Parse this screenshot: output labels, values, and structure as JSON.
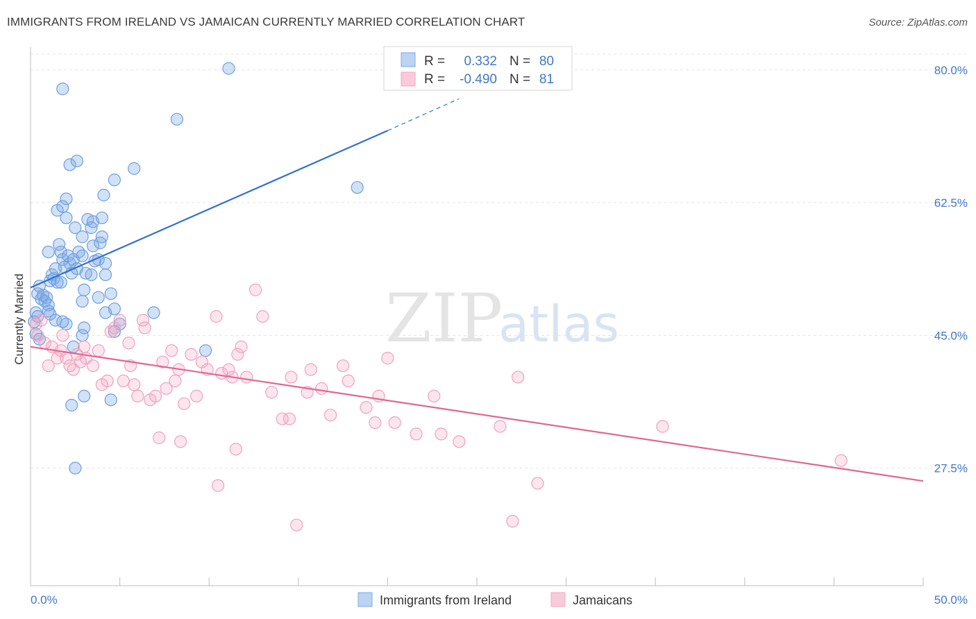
{
  "header": {
    "title": "IMMIGRANTS FROM IRELAND VS JAMAICAN CURRENTLY MARRIED CORRELATION CHART",
    "source": "Source: ZipAtlas.com"
  },
  "watermark": {
    "zip": "ZIP",
    "atlas": "atlas"
  },
  "legend_box": {
    "rows": [
      {
        "r_label": "R = ",
        "r_value": "0.332",
        "n_label": "N = ",
        "n_value": "80"
      },
      {
        "r_label": "R = ",
        "r_value": "-0.490",
        "n_label": "N = ",
        "n_value": "81"
      }
    ]
  },
  "chart_data": {
    "type": "scatter",
    "title": "IMMIGRANTS FROM IRELAND VS JAMAICAN CURRENTLY MARRIED CORRELATION CHART",
    "xlabel": "",
    "ylabel": "Currently Married",
    "xlim": [
      0,
      50
    ],
    "ylim": [
      12,
      83
    ],
    "x_tick_labels": [
      "0.0%",
      "50.0%"
    ],
    "y_ticks": [
      27.5,
      45.0,
      62.5,
      80.0
    ],
    "y_tick_labels": [
      "27.5%",
      "45.0%",
      "62.5%",
      "80.0%"
    ],
    "grid": true,
    "legend_position": "bottom",
    "colors": {
      "ireland": "#7aaae6",
      "ireland_line": "#2f6fcc",
      "jamaican": "#f3a6c0",
      "jamaican_line": "#e0668f"
    },
    "series": [
      {
        "name": "Immigrants from Ireland",
        "r": 0.332,
        "n": 80,
        "trend": {
          "x": [
            0,
            20.0
          ],
          "y": [
            51.3,
            72.0
          ],
          "dashed_to": [
            24.0,
            76.2
          ]
        },
        "points": [
          [
            0.2,
            46.8
          ],
          [
            0.3,
            48.0
          ],
          [
            0.4,
            47.5
          ],
          [
            0.3,
            45.2
          ],
          [
            0.5,
            44.5
          ],
          [
            0.4,
            50.5
          ],
          [
            0.6,
            49.8
          ],
          [
            0.7,
            50.3
          ],
          [
            0.5,
            51.5
          ],
          [
            0.8,
            49.5
          ],
          [
            0.9,
            50.0
          ],
          [
            1.0,
            49.0
          ],
          [
            1.1,
            52.2
          ],
          [
            1.2,
            53.0
          ],
          [
            1.3,
            52.5
          ],
          [
            1.4,
            53.8
          ],
          [
            1.0,
            48.2
          ],
          [
            1.5,
            52.0
          ],
          [
            1.7,
            52.0
          ],
          [
            1.1,
            47.8
          ],
          [
            1.4,
            47.0
          ],
          [
            2.0,
            46.5
          ],
          [
            1.8,
            46.8
          ],
          [
            1.0,
            56.0
          ],
          [
            1.7,
            56.0
          ],
          [
            1.6,
            57.0
          ],
          [
            1.8,
            55.0
          ],
          [
            2.1,
            55.5
          ],
          [
            2.2,
            54.5
          ],
          [
            2.4,
            55.0
          ],
          [
            2.7,
            56.0
          ],
          [
            2.9,
            55.5
          ],
          [
            1.9,
            54.0
          ],
          [
            2.3,
            53.2
          ],
          [
            2.6,
            53.8
          ],
          [
            3.1,
            53.2
          ],
          [
            3.4,
            53.0
          ],
          [
            3.6,
            54.8
          ],
          [
            3.8,
            55.0
          ],
          [
            4.2,
            54.5
          ],
          [
            3.5,
            56.8
          ],
          [
            3.9,
            57.2
          ],
          [
            4.0,
            58.0
          ],
          [
            2.5,
            59.2
          ],
          [
            2.9,
            58.0
          ],
          [
            3.2,
            60.3
          ],
          [
            3.4,
            59.2
          ],
          [
            3.5,
            60.0
          ],
          [
            4.0,
            60.5
          ],
          [
            2.0,
            60.5
          ],
          [
            1.5,
            61.5
          ],
          [
            1.8,
            62.0
          ],
          [
            2.0,
            63.0
          ],
          [
            4.1,
            63.5
          ],
          [
            4.7,
            65.5
          ],
          [
            2.2,
            67.5
          ],
          [
            2.6,
            68.0
          ],
          [
            5.8,
            67.0
          ],
          [
            1.8,
            77.5
          ],
          [
            8.2,
            73.5
          ],
          [
            11.1,
            80.2
          ],
          [
            18.3,
            64.5
          ],
          [
            4.2,
            53.0
          ],
          [
            4.2,
            48.0
          ],
          [
            4.5,
            50.5
          ],
          [
            2.9,
            49.5
          ],
          [
            3.0,
            46.0
          ],
          [
            4.7,
            48.5
          ],
          [
            4.7,
            45.5
          ],
          [
            5.0,
            46.5
          ],
          [
            2.9,
            45.0
          ],
          [
            2.4,
            43.5
          ],
          [
            6.9,
            48.0
          ],
          [
            9.8,
            43.0
          ],
          [
            3.0,
            37.0
          ],
          [
            2.3,
            35.8
          ],
          [
            4.5,
            36.5
          ],
          [
            2.5,
            27.5
          ],
          [
            3.8,
            50.0
          ],
          [
            3.0,
            51.0
          ]
        ]
      },
      {
        "name": "Jamaicans",
        "r": -0.49,
        "n": 81,
        "trend": {
          "x": [
            0,
            50
          ],
          "y": [
            43.5,
            25.8
          ]
        },
        "points": [
          [
            0.3,
            46.5
          ],
          [
            0.4,
            45.0
          ],
          [
            0.6,
            47.0
          ],
          [
            0.8,
            44.0
          ],
          [
            1.0,
            41.0
          ],
          [
            1.2,
            43.5
          ],
          [
            1.5,
            42.0
          ],
          [
            1.7,
            43.0
          ],
          [
            1.8,
            45.0
          ],
          [
            2.0,
            42.0
          ],
          [
            2.2,
            41.0
          ],
          [
            2.4,
            40.5
          ],
          [
            2.6,
            42.5
          ],
          [
            2.8,
            41.5
          ],
          [
            3.0,
            43.5
          ],
          [
            3.1,
            42.0
          ],
          [
            3.5,
            41.0
          ],
          [
            3.8,
            43.0
          ],
          [
            4.0,
            38.5
          ],
          [
            4.3,
            39.0
          ],
          [
            4.5,
            45.5
          ],
          [
            4.7,
            46.0
          ],
          [
            5.0,
            47.0
          ],
          [
            5.2,
            39.0
          ],
          [
            5.5,
            44.0
          ],
          [
            5.6,
            41.0
          ],
          [
            5.8,
            38.5
          ],
          [
            6.0,
            37.0
          ],
          [
            6.3,
            47.0
          ],
          [
            6.4,
            46.0
          ],
          [
            6.7,
            36.5
          ],
          [
            7.0,
            37.0
          ],
          [
            7.4,
            41.5
          ],
          [
            7.6,
            38.0
          ],
          [
            7.9,
            43.0
          ],
          [
            8.1,
            39.0
          ],
          [
            8.3,
            40.5
          ],
          [
            8.6,
            36.0
          ],
          [
            9.0,
            42.5
          ],
          [
            9.3,
            37.0
          ],
          [
            9.6,
            41.5
          ],
          [
            9.9,
            40.5
          ],
          [
            10.4,
            47.5
          ],
          [
            10.7,
            40.0
          ],
          [
            11.1,
            40.5
          ],
          [
            11.3,
            39.5
          ],
          [
            11.6,
            42.5
          ],
          [
            11.8,
            43.5
          ],
          [
            12.1,
            39.5
          ],
          [
            12.6,
            51.0
          ],
          [
            13.0,
            47.5
          ],
          [
            13.5,
            37.5
          ],
          [
            14.1,
            34.0
          ],
          [
            14.5,
            34.0
          ],
          [
            14.6,
            39.5
          ],
          [
            15.5,
            37.5
          ],
          [
            15.7,
            40.5
          ],
          [
            16.3,
            38.0
          ],
          [
            16.8,
            34.5
          ],
          [
            17.5,
            41.0
          ],
          [
            17.8,
            39.0
          ],
          [
            18.8,
            35.5
          ],
          [
            19.3,
            33.5
          ],
          [
            19.5,
            37.0
          ],
          [
            20.0,
            42.0
          ],
          [
            20.4,
            33.5
          ],
          [
            21.6,
            32.0
          ],
          [
            22.6,
            37.0
          ],
          [
            23.0,
            32.0
          ],
          [
            24.0,
            31.0
          ],
          [
            26.3,
            33.0
          ],
          [
            27.3,
            39.5
          ],
          [
            28.4,
            25.5
          ],
          [
            35.4,
            33.0
          ],
          [
            45.4,
            28.5
          ],
          [
            11.5,
            30.0
          ],
          [
            8.4,
            31.0
          ],
          [
            7.2,
            31.5
          ],
          [
            10.5,
            25.2
          ],
          [
            14.9,
            20.0
          ],
          [
            27.0,
            20.5
          ]
        ]
      }
    ]
  },
  "bottom_legend": {
    "items": [
      {
        "label": "Immigrants from Ireland"
      },
      {
        "label": "Jamaicans"
      }
    ]
  }
}
